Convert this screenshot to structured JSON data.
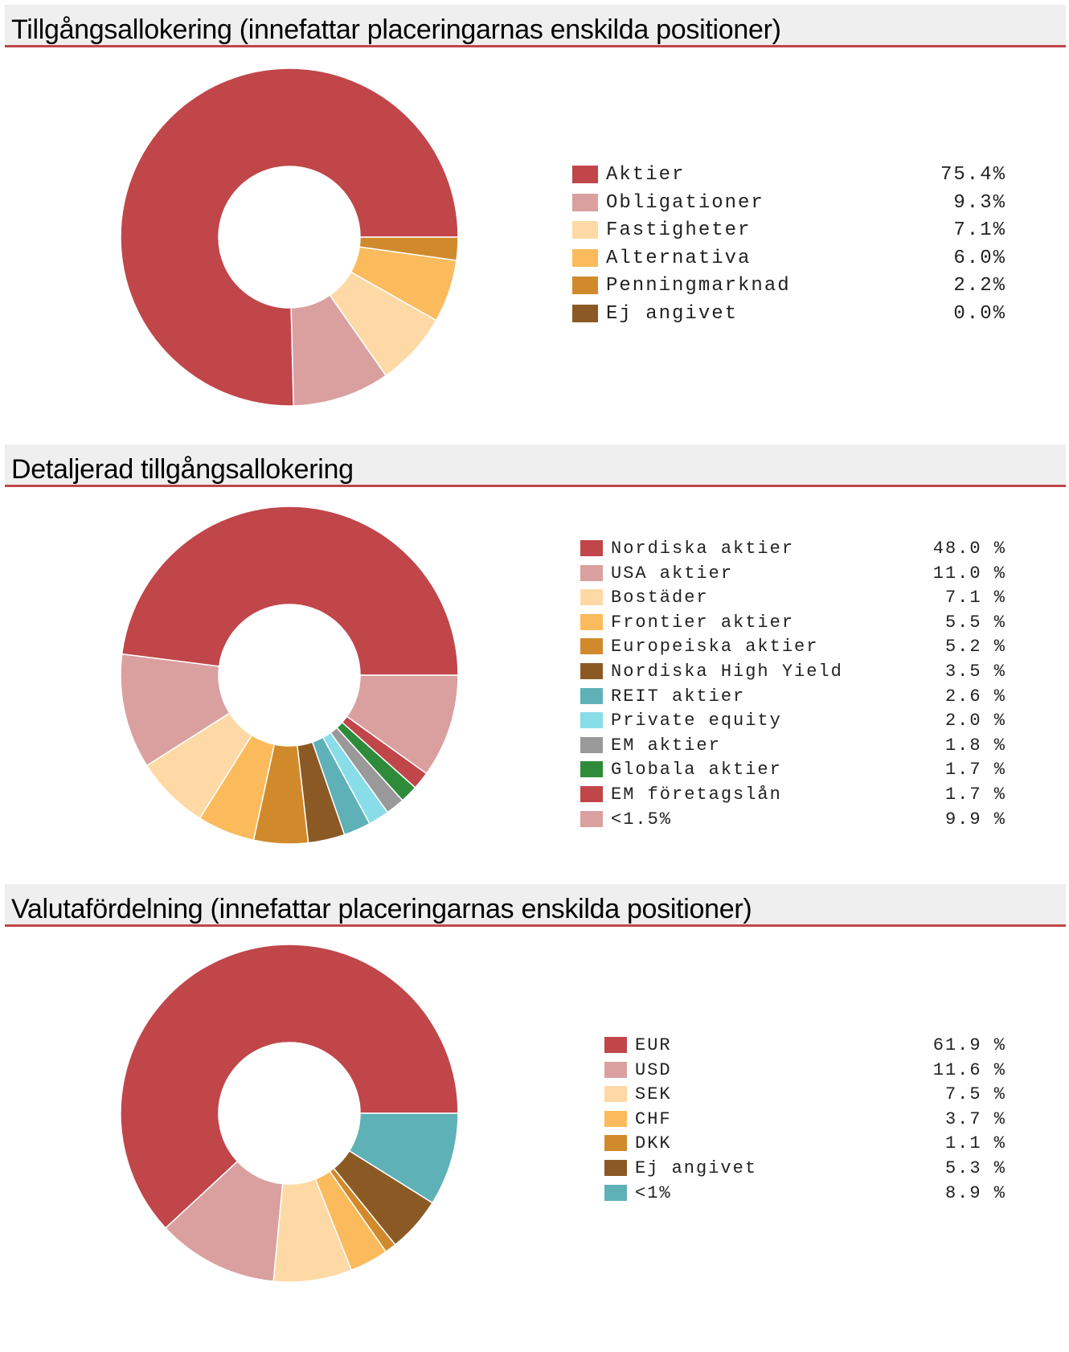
{
  "sections": [
    {
      "title": "Tillgångsallokering (innefattar placeringarnas enskilda positioner)"
    },
    {
      "title": "Detaljerad tillgångsallokering"
    },
    {
      "title": "Valutafördelning (innefattar placeringarnas enskilda positioner)"
    }
  ],
  "chart_data": [
    {
      "type": "pie",
      "title": "Tillgångsallokering (innefattar placeringarnas enskilda positioner)",
      "labels": [
        "Aktier",
        "Obligationer",
        "Fastigheter",
        "Alternativa",
        "Penningmarknad",
        "Ej angivet"
      ],
      "values": [
        75.4,
        9.3,
        7.1,
        6.0,
        2.2,
        0.0
      ],
      "value_texts": [
        "75.4%",
        "9.3%",
        "7.1%",
        "6.0%",
        "2.2%",
        "0.0%"
      ],
      "colors": [
        "#c0464a",
        "#daa0a0",
        "#fed9a6",
        "#fbbb5c",
        "#d08a2c",
        "#8b5a24"
      ],
      "legend": "right"
    },
    {
      "type": "pie",
      "title": "Detaljerad tillgångsallokering",
      "labels": [
        "Nordiska aktier",
        "USA aktier",
        "Bostäder",
        "Frontier aktier",
        "Europeiska aktier",
        "Nordiska High Yield",
        "REIT aktier",
        "Private equity",
        "EM aktier",
        "Globala aktier",
        "EM företagslån",
        "<1.5%"
      ],
      "values": [
        48.0,
        11.0,
        7.1,
        5.5,
        5.2,
        3.5,
        2.6,
        2.0,
        1.8,
        1.7,
        1.7,
        9.9
      ],
      "value_texts": [
        "48.0 %",
        "11.0 %",
        "7.1 %",
        "5.5 %",
        "5.2 %",
        "3.5 %",
        "2.6 %",
        "2.0 %",
        "1.8 %",
        "1.7 %",
        "1.7 %",
        "9.9 %"
      ],
      "colors": [
        "#c0464a",
        "#daa0a0",
        "#fed9a6",
        "#fbbb5c",
        "#d08a2c",
        "#8b5a24",
        "#5fb1b8",
        "#89dde8",
        "#999999",
        "#2e8b3a",
        "#c0464a",
        "#daa0a0"
      ],
      "legend": "right"
    },
    {
      "type": "pie",
      "title": "Valutafördelning (innefattar placeringarnas enskilda positioner)",
      "labels": [
        "EUR",
        "USD",
        "SEK",
        "CHF",
        "DKK",
        "Ej angivet",
        "<1%"
      ],
      "values": [
        61.9,
        11.6,
        7.5,
        3.7,
        1.1,
        5.3,
        8.9
      ],
      "value_texts": [
        "61.9 %",
        "11.6 %",
        "7.5 %",
        "3.7 %",
        "1.1 %",
        "5.3 %",
        "8.9 %"
      ],
      "colors": [
        "#c0464a",
        "#daa0a0",
        "#fed9a6",
        "#fbbb5c",
        "#d08a2c",
        "#8b5a24",
        "#5fb1b8"
      ],
      "legend": "right"
    }
  ]
}
